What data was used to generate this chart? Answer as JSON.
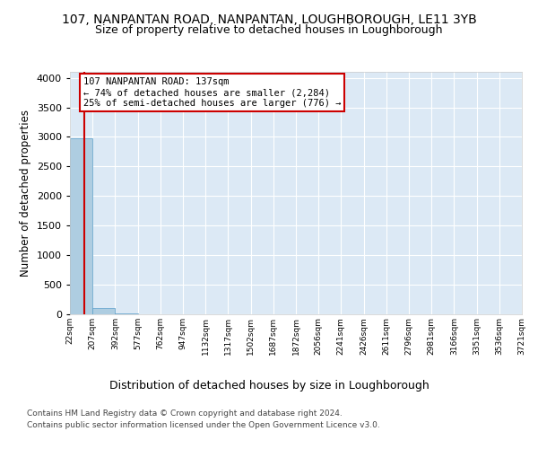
{
  "title1": "107, NANPANTAN ROAD, NANPANTAN, LOUGHBOROUGH, LE11 3YB",
  "title2": "Size of property relative to detached houses in Loughborough",
  "xlabel": "Distribution of detached houses by size in Loughborough",
  "ylabel": "Number of detached properties",
  "footer1": "Contains HM Land Registry data © Crown copyright and database right 2024.",
  "footer2": "Contains public sector information licensed under the Open Government Licence v3.0.",
  "bin_edges": [
    22,
    207,
    392,
    577,
    762,
    947,
    1132,
    1317,
    1502,
    1687,
    1872,
    2056,
    2241,
    2426,
    2611,
    2796,
    2981,
    3166,
    3351,
    3536,
    3721
  ],
  "bar_heights": [
    2980,
    100,
    12,
    5,
    3,
    2,
    1,
    1,
    0,
    0,
    0,
    0,
    0,
    0,
    0,
    0,
    0,
    0,
    0,
    0
  ],
  "bar_color": "#aecde1",
  "bar_edge_color": "#5a9ec9",
  "property_size": 137,
  "property_line_color": "#cc0000",
  "annotation_text1": "107 NANPANTAN ROAD: 137sqm",
  "annotation_text2": "← 74% of detached houses are smaller (2,284)",
  "annotation_text3": "25% of semi-detached houses are larger (776) →",
  "annotation_box_color": "#cc0000",
  "ylim": [
    0,
    4100
  ],
  "yticks": [
    0,
    500,
    1000,
    1500,
    2000,
    2500,
    3000,
    3500,
    4000
  ],
  "bg_color": "#dce9f5",
  "plot_bg_color": "#dce9f5",
  "grid_color": "#ffffff",
  "title1_fontsize": 10,
  "title2_fontsize": 9,
  "xlabel_fontsize": 9,
  "ylabel_fontsize": 8.5
}
